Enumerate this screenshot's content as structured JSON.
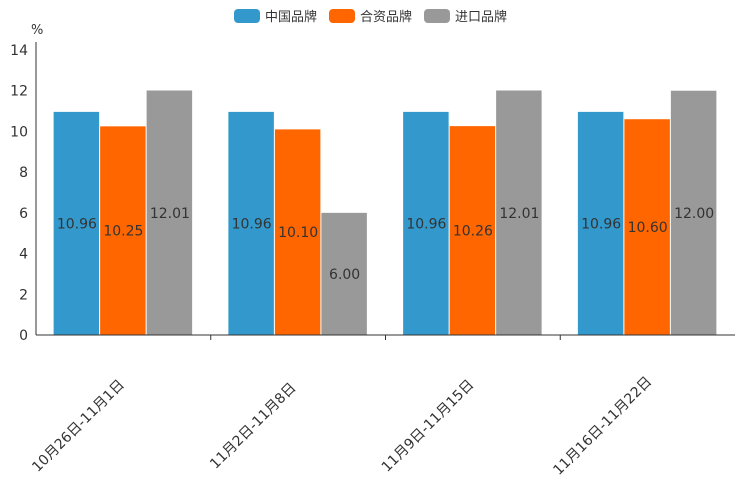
{
  "chart_data": {
    "type": "bar",
    "title": "",
    "xlabel": "",
    "ylabel": "%",
    "ylim": [
      0,
      14
    ],
    "yticks": [
      0,
      2,
      4,
      6,
      8,
      10,
      12,
      14
    ],
    "legend_position": "top-center",
    "grid": false,
    "categories": [
      "10月26日-11月1日",
      "11月2日-11月8日",
      "11月9日-11月15日",
      "11月16日-11月22日"
    ],
    "series": [
      {
        "name": "中国品牌",
        "color": "#3399cc",
        "values": [
          10.96,
          10.96,
          10.96,
          10.96
        ],
        "labels": [
          "10.96",
          "10.96",
          "10.96",
          "10.96"
        ]
      },
      {
        "name": "合资品牌",
        "color": "#ff6600",
        "values": [
          10.25,
          10.1,
          10.26,
          10.6
        ],
        "labels": [
          "10.25",
          "10.10",
          "10.26",
          "10.60"
        ]
      },
      {
        "name": "进口品牌",
        "color": "#999999",
        "values": [
          12.01,
          6.0,
          12.01,
          12.0
        ],
        "labels": [
          "12.01",
          "6.00",
          "12.01",
          "12.00"
        ]
      }
    ]
  }
}
